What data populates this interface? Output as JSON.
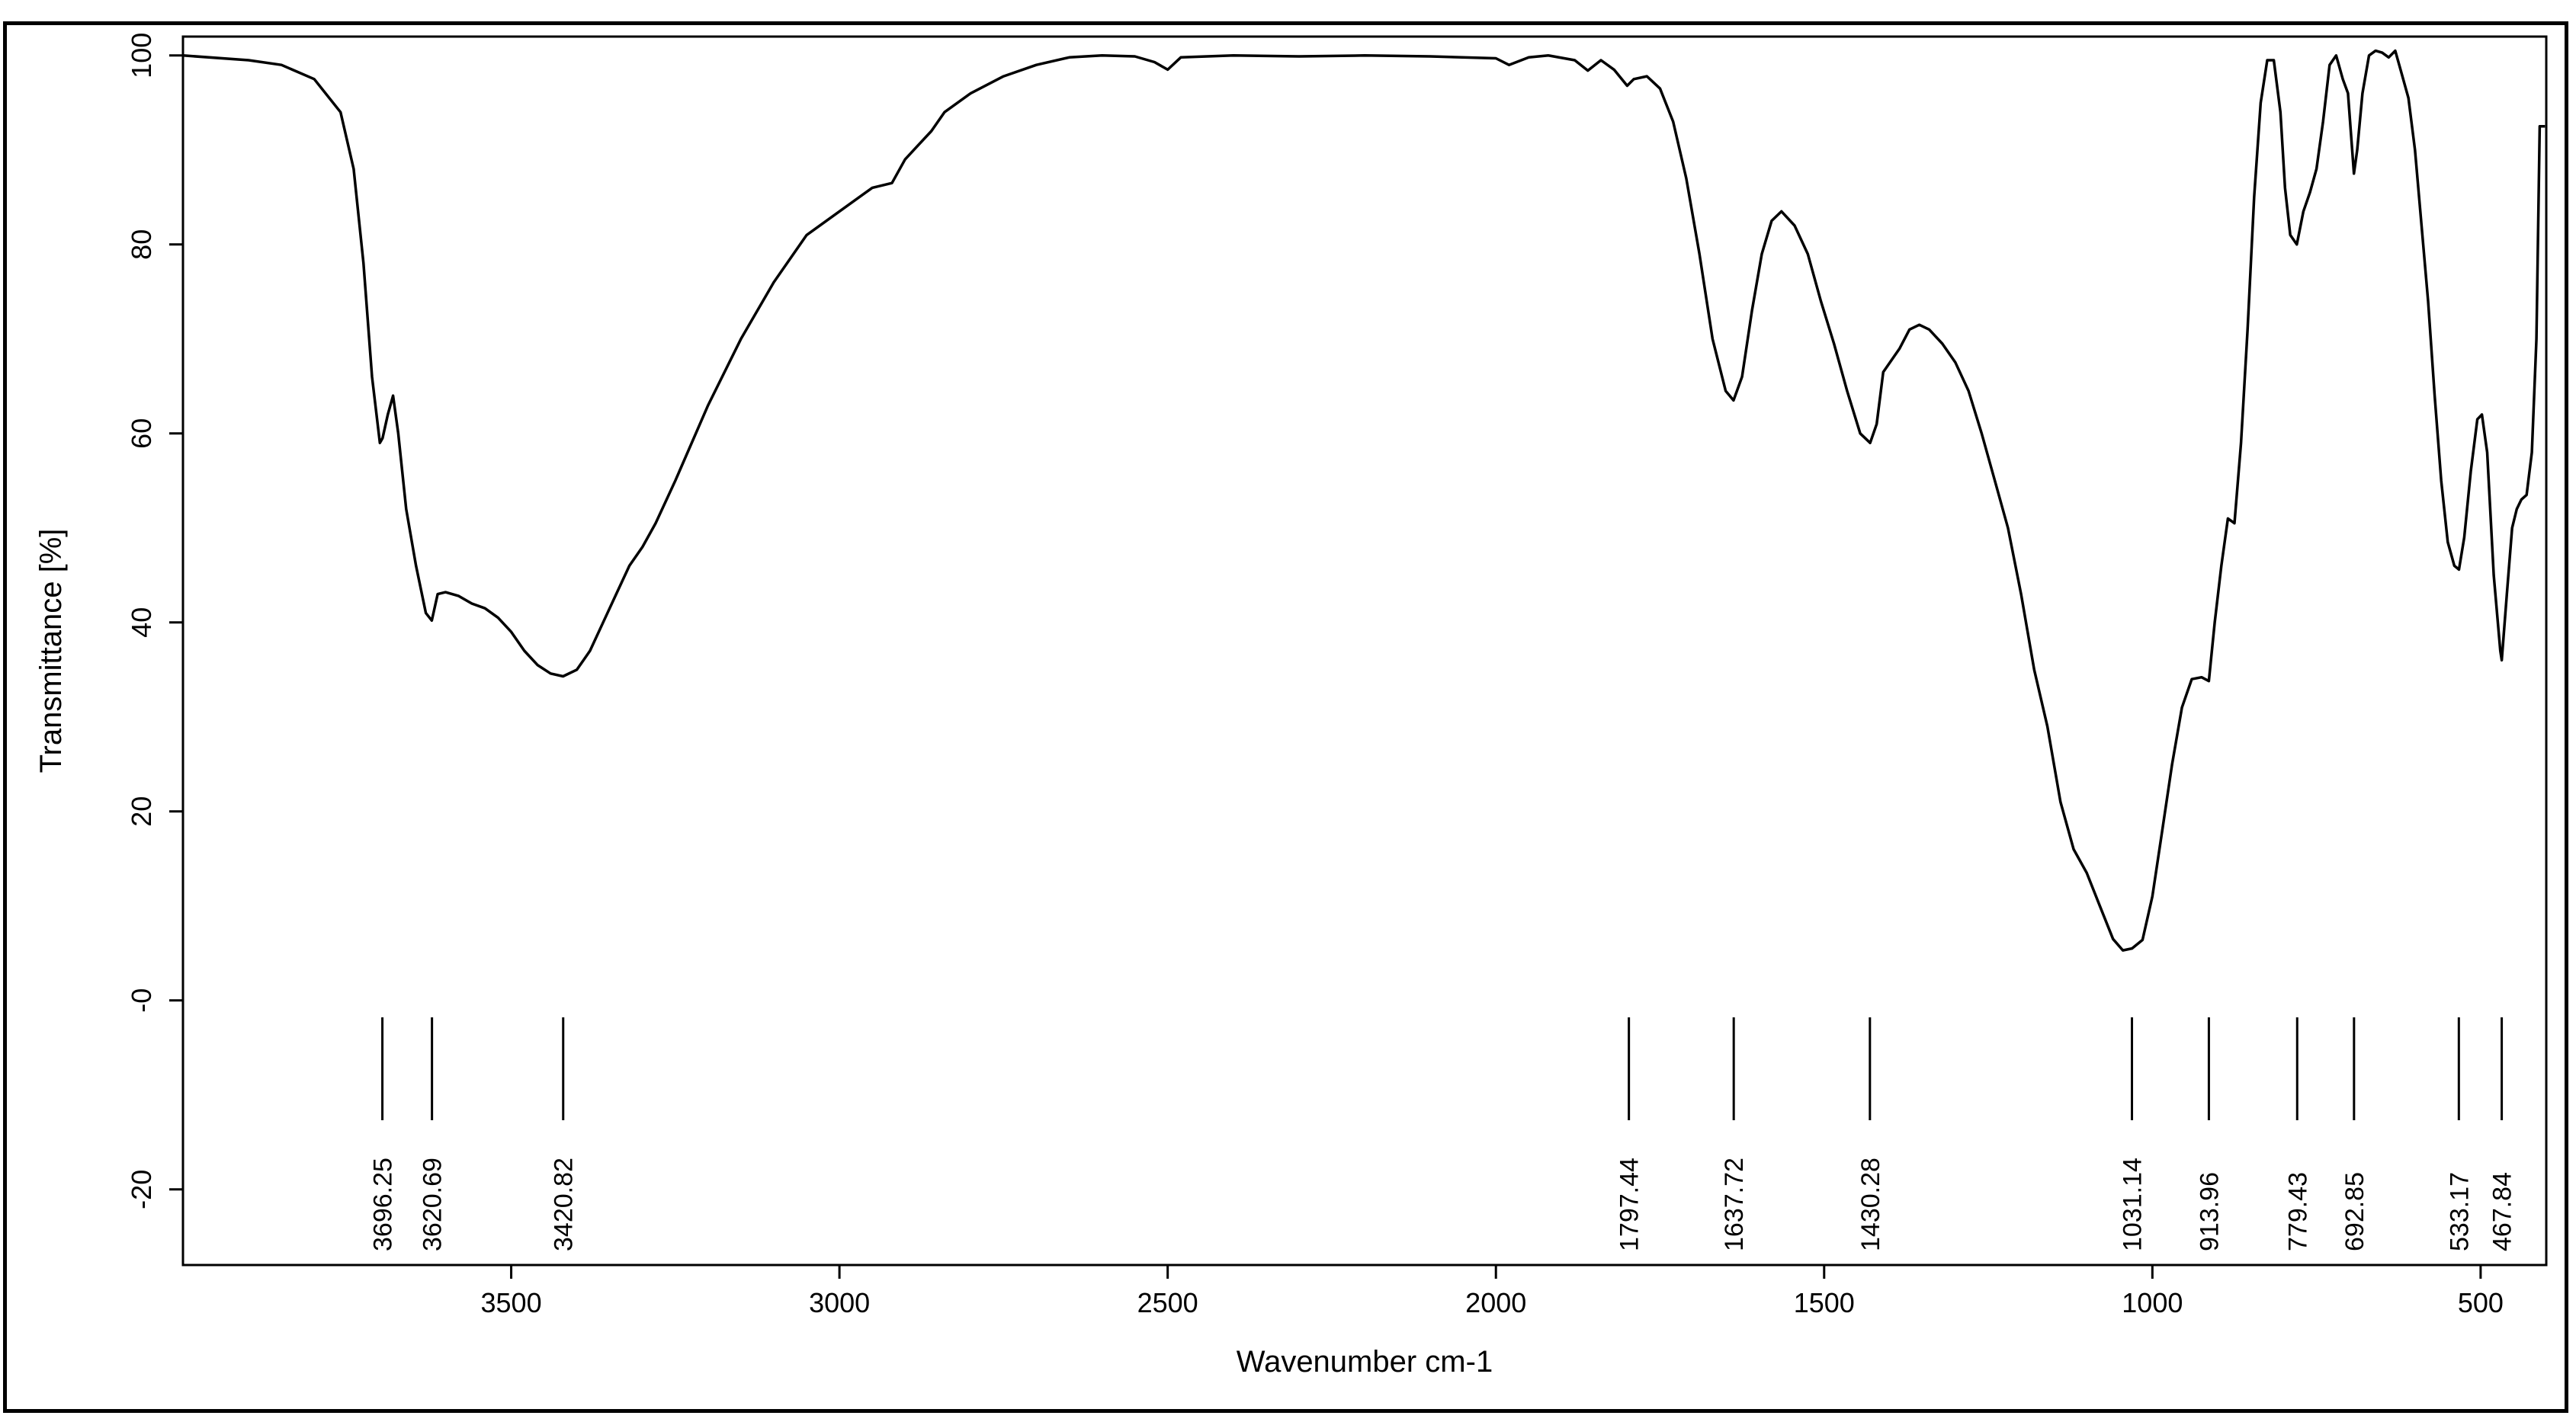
{
  "chart_data": {
    "type": "line",
    "title": "",
    "xlabel": "Wavenumber cm-1",
    "ylabel": "Transmittance [%]",
    "xlim": [
      4000,
      400
    ],
    "ylim": [
      -28,
      102
    ],
    "x_reversed": true,
    "grid": false,
    "line_color": "#000000",
    "xticks": [
      {
        "value": 3500,
        "label": "3500"
      },
      {
        "value": 3000,
        "label": "3000"
      },
      {
        "value": 2500,
        "label": "2500"
      },
      {
        "value": 2000,
        "label": "2000"
      },
      {
        "value": 1500,
        "label": "1500"
      },
      {
        "value": 1000,
        "label": "1000"
      },
      {
        "value": 500,
        "label": "500"
      }
    ],
    "yticks": [
      {
        "value": 100,
        "label": "100"
      },
      {
        "value": 80,
        "label": "80"
      },
      {
        "value": 60,
        "label": "60"
      },
      {
        "value": 40,
        "label": "40"
      },
      {
        "value": 20,
        "label": "20"
      },
      {
        "value": 0,
        "label": "-0"
      },
      {
        "value": -20,
        "label": "-20"
      }
    ],
    "peaks": [
      {
        "x": 3696.25,
        "label": "3696.25"
      },
      {
        "x": 3620.69,
        "label": "3620.69"
      },
      {
        "x": 3420.82,
        "label": "3420.82"
      },
      {
        "x": 1797.44,
        "label": "1797.44"
      },
      {
        "x": 1637.72,
        "label": "1637.72"
      },
      {
        "x": 1430.28,
        "label": "1430.28"
      },
      {
        "x": 1031.14,
        "label": "1031.14"
      },
      {
        "x": 913.96,
        "label": "913.96"
      },
      {
        "x": 779.43,
        "label": "779.43"
      },
      {
        "x": 692.85,
        "label": "692.85"
      },
      {
        "x": 533.17,
        "label": "533.17"
      },
      {
        "x": 467.84,
        "label": "467.84"
      }
    ],
    "series": [
      {
        "points": [
          [
            4000,
            100
          ],
          [
            3900,
            99.5
          ],
          [
            3850,
            99
          ],
          [
            3800,
            97.5
          ],
          [
            3760,
            94
          ],
          [
            3740,
            88
          ],
          [
            3725,
            78
          ],
          [
            3712,
            66
          ],
          [
            3700,
            59
          ],
          [
            3696,
            59.5
          ],
          [
            3688,
            62
          ],
          [
            3680,
            64
          ],
          [
            3672,
            60
          ],
          [
            3660,
            52
          ],
          [
            3645,
            46
          ],
          [
            3630,
            41
          ],
          [
            3621,
            40.2
          ],
          [
            3612,
            43
          ],
          [
            3600,
            43.2
          ],
          [
            3580,
            42.8
          ],
          [
            3560,
            42
          ],
          [
            3540,
            41.5
          ],
          [
            3520,
            40.5
          ],
          [
            3500,
            39
          ],
          [
            3480,
            37
          ],
          [
            3460,
            35.5
          ],
          [
            3440,
            34.6
          ],
          [
            3421,
            34.3
          ],
          [
            3400,
            35
          ],
          [
            3380,
            37
          ],
          [
            3360,
            40
          ],
          [
            3340,
            43
          ],
          [
            3320,
            46
          ],
          [
            3300,
            48
          ],
          [
            3280,
            50.5
          ],
          [
            3250,
            55
          ],
          [
            3200,
            63
          ],
          [
            3150,
            70
          ],
          [
            3100,
            76
          ],
          [
            3050,
            81
          ],
          [
            3000,
            83.5
          ],
          [
            2950,
            86
          ],
          [
            2920,
            86.5
          ],
          [
            2900,
            89
          ],
          [
            2880,
            90.5
          ],
          [
            2860,
            92
          ],
          [
            2840,
            94
          ],
          [
            2800,
            96
          ],
          [
            2750,
            97.8
          ],
          [
            2700,
            99
          ],
          [
            2650,
            99.8
          ],
          [
            2600,
            100
          ],
          [
            2550,
            99.9
          ],
          [
            2520,
            99.3
          ],
          [
            2500,
            98.5
          ],
          [
            2480,
            99.8
          ],
          [
            2400,
            100
          ],
          [
            2300,
            99.9
          ],
          [
            2200,
            100
          ],
          [
            2100,
            99.9
          ],
          [
            2000,
            99.7
          ],
          [
            1980,
            99
          ],
          [
            1950,
            99.8
          ],
          [
            1920,
            100
          ],
          [
            1880,
            99.5
          ],
          [
            1860,
            98.4
          ],
          [
            1840,
            99.5
          ],
          [
            1820,
            98.5
          ],
          [
            1800,
            96.8
          ],
          [
            1790,
            97.5
          ],
          [
            1770,
            97.8
          ],
          [
            1750,
            96.5
          ],
          [
            1730,
            93
          ],
          [
            1710,
            87
          ],
          [
            1690,
            79
          ],
          [
            1670,
            70
          ],
          [
            1650,
            64.5
          ],
          [
            1638,
            63.5
          ],
          [
            1625,
            66
          ],
          [
            1610,
            73
          ],
          [
            1595,
            79
          ],
          [
            1580,
            82.5
          ],
          [
            1565,
            83.5
          ],
          [
            1545,
            82
          ],
          [
            1525,
            79
          ],
          [
            1505,
            74
          ],
          [
            1485,
            69.5
          ],
          [
            1465,
            64.5
          ],
          [
            1445,
            60
          ],
          [
            1430,
            59
          ],
          [
            1420,
            61
          ],
          [
            1410,
            66.5
          ],
          [
            1395,
            68
          ],
          [
            1385,
            69
          ],
          [
            1370,
            71
          ],
          [
            1355,
            71.5
          ],
          [
            1340,
            71
          ],
          [
            1320,
            69.5
          ],
          [
            1300,
            67.5
          ],
          [
            1280,
            64.5
          ],
          [
            1260,
            60
          ],
          [
            1240,
            55
          ],
          [
            1220,
            50
          ],
          [
            1200,
            43
          ],
          [
            1180,
            35
          ],
          [
            1160,
            29
          ],
          [
            1140,
            21
          ],
          [
            1120,
            16
          ],
          [
            1100,
            13.5
          ],
          [
            1080,
            10
          ],
          [
            1060,
            6.5
          ],
          [
            1045,
            5.3
          ],
          [
            1031,
            5.5
          ],
          [
            1015,
            6.4
          ],
          [
            1000,
            11
          ],
          [
            985,
            18
          ],
          [
            970,
            25
          ],
          [
            955,
            31
          ],
          [
            940,
            34
          ],
          [
            925,
            34.2
          ],
          [
            914,
            33.8
          ],
          [
            905,
            40
          ],
          [
            895,
            46
          ],
          [
            885,
            51
          ],
          [
            875,
            50.5
          ],
          [
            865,
            59
          ],
          [
            855,
            71
          ],
          [
            845,
            85
          ],
          [
            835,
            95
          ],
          [
            825,
            99.5
          ],
          [
            815,
            99.5
          ],
          [
            805,
            94
          ],
          [
            798,
            86
          ],
          [
            790,
            81
          ],
          [
            780,
            80
          ],
          [
            770,
            83.5
          ],
          [
            760,
            85.5
          ],
          [
            750,
            88
          ],
          [
            740,
            93
          ],
          [
            730,
            99
          ],
          [
            720,
            100
          ],
          [
            710,
            97.5
          ],
          [
            702,
            96
          ],
          [
            693,
            87.5
          ],
          [
            688,
            90
          ],
          [
            680,
            96
          ],
          [
            670,
            100
          ],
          [
            660,
            100.5
          ],
          [
            650,
            100.3
          ],
          [
            640,
            99.8
          ],
          [
            630,
            100.5
          ],
          [
            620,
            98
          ],
          [
            610,
            95.5
          ],
          [
            600,
            90
          ],
          [
            590,
            82
          ],
          [
            580,
            74
          ],
          [
            570,
            64
          ],
          [
            560,
            55
          ],
          [
            550,
            48.5
          ],
          [
            540,
            46
          ],
          [
            533,
            45.6
          ],
          [
            525,
            49
          ],
          [
            515,
            56
          ],
          [
            505,
            61.5
          ],
          [
            498,
            62
          ],
          [
            490,
            58
          ],
          [
            480,
            45
          ],
          [
            470,
            37
          ],
          [
            467.8,
            36
          ],
          [
            460,
            43
          ],
          [
            452,
            50
          ],
          [
            445,
            52
          ],
          [
            438,
            53
          ],
          [
            430,
            53.5
          ],
          [
            422,
            58
          ],
          [
            415,
            70
          ],
          [
            410,
            92.5
          ],
          [
            402,
            92.5
          ]
        ]
      }
    ]
  }
}
